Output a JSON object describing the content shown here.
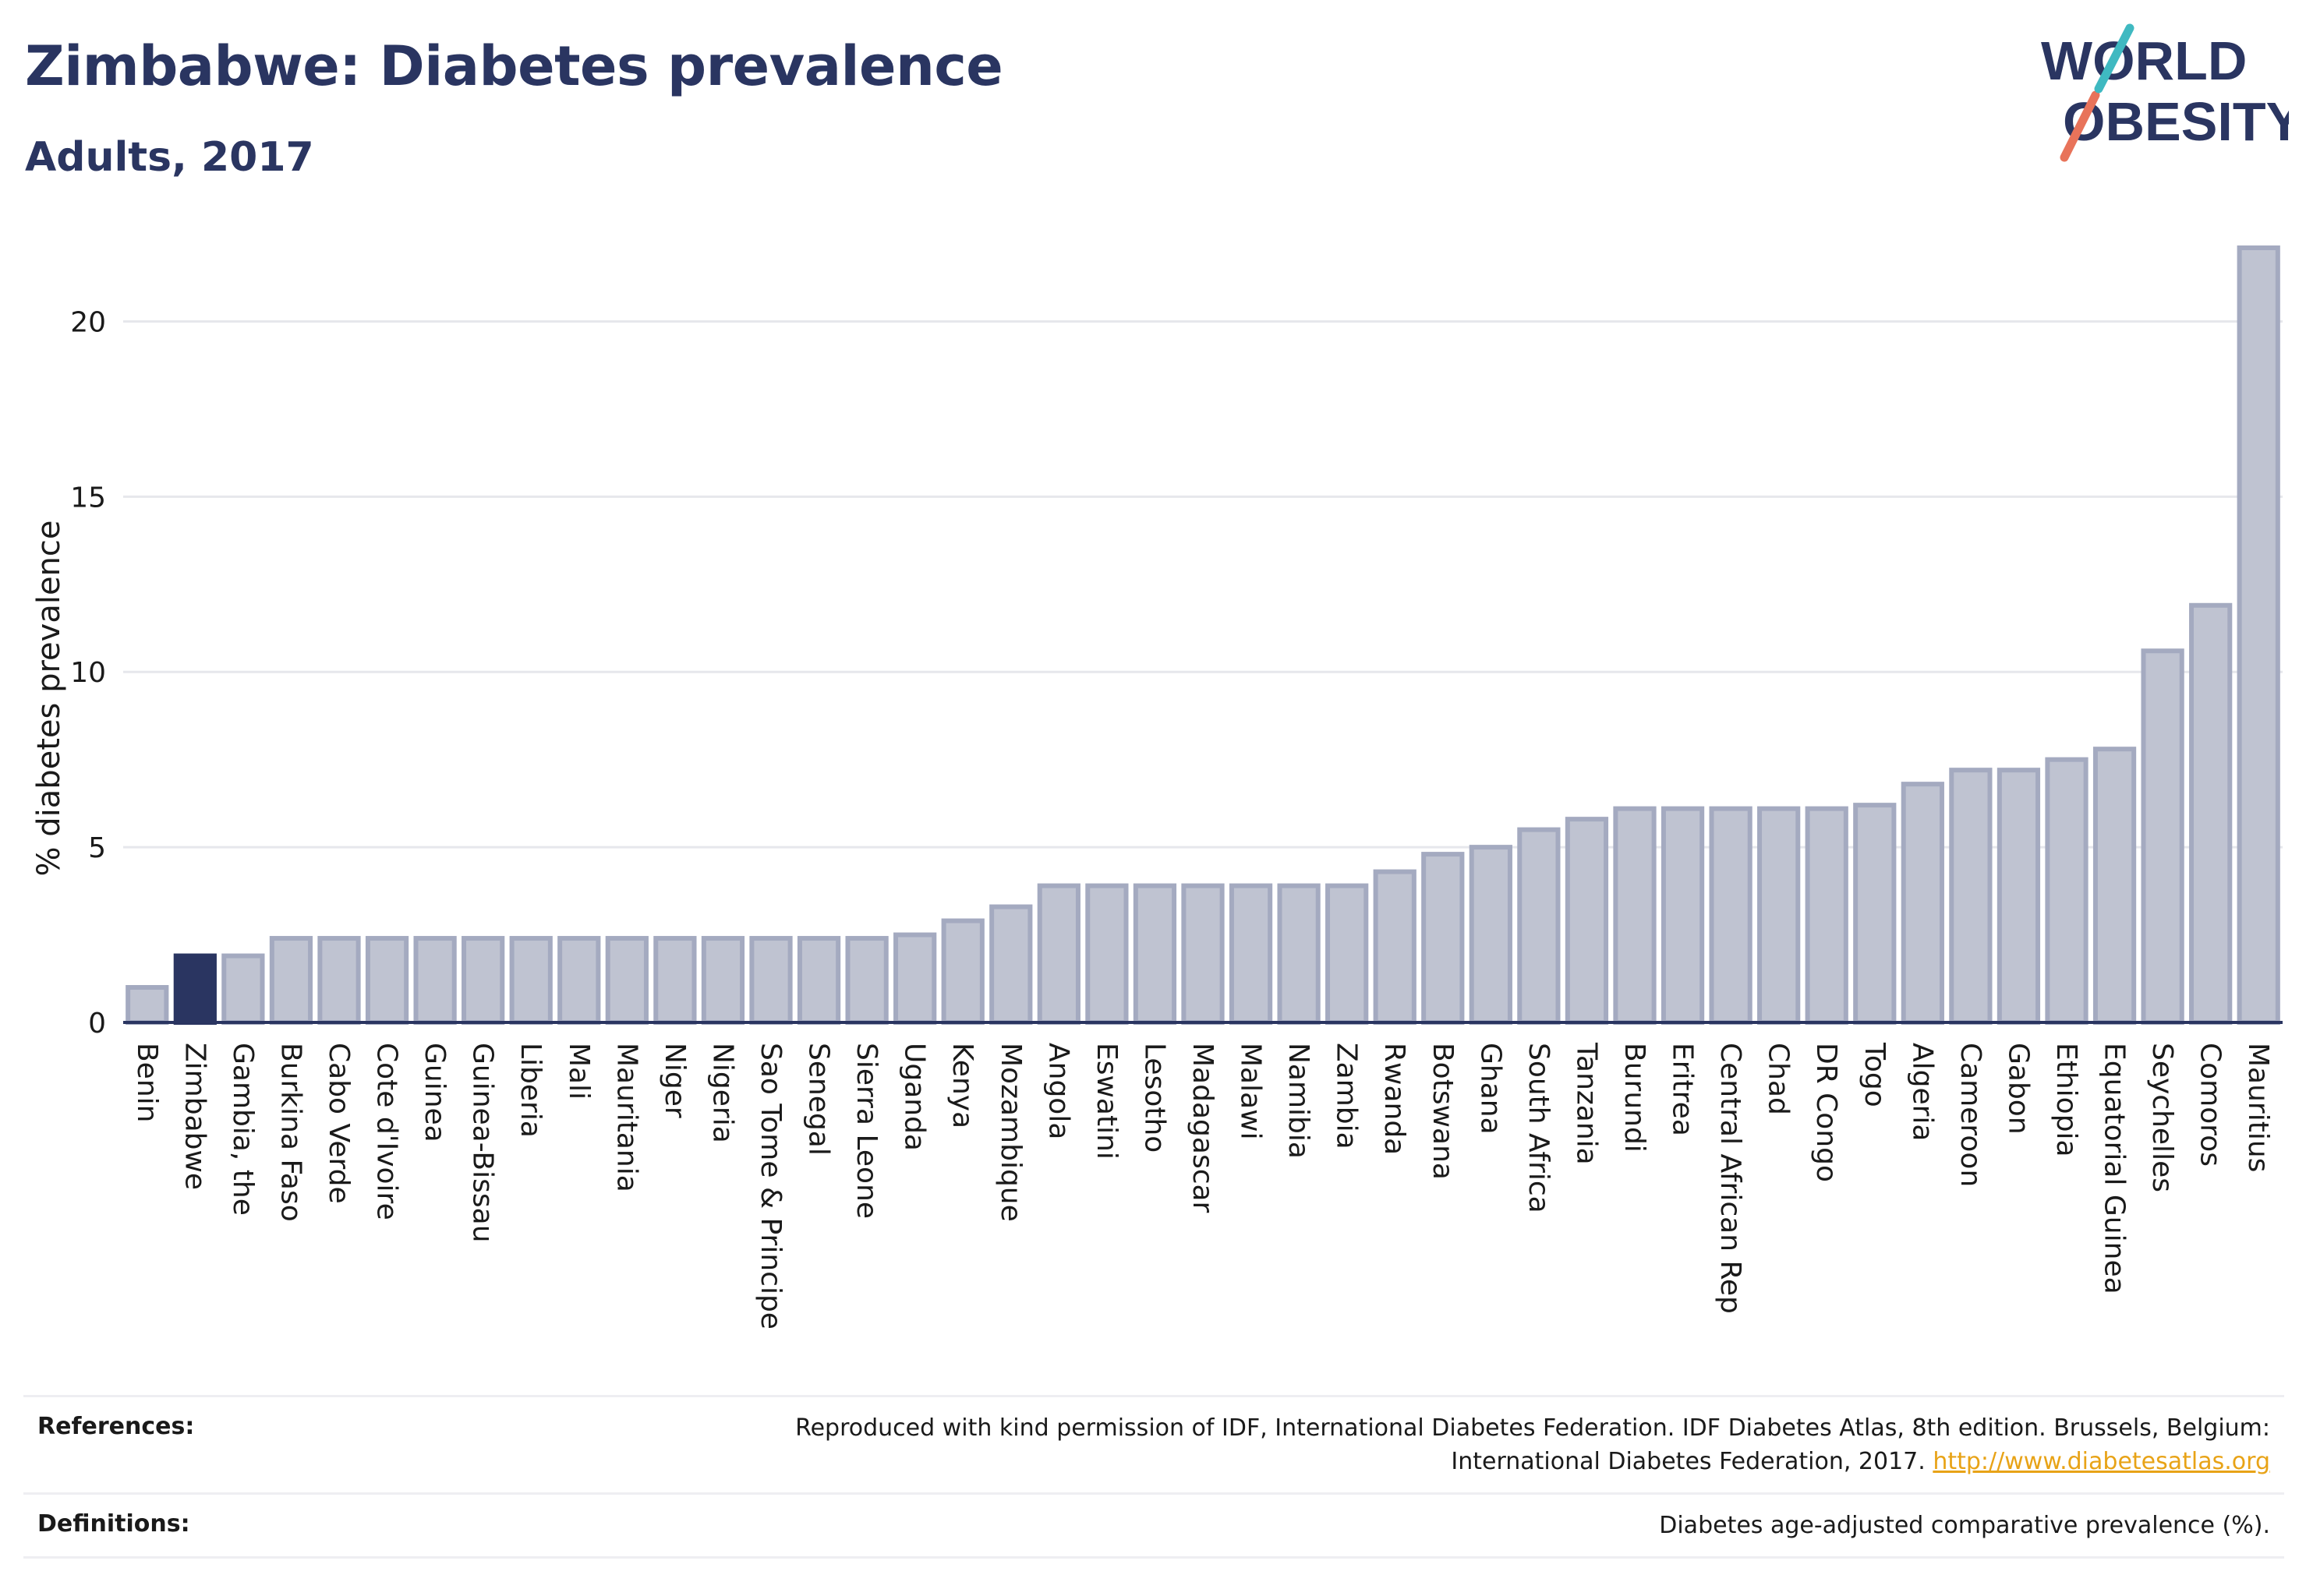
{
  "header": {
    "title": "Zimbabwe: Diabetes prevalence",
    "subtitle": "Adults, 2017"
  },
  "logo": {
    "line1": "WORLD",
    "line2": "OBESITY",
    "slash_colors": [
      "#e8735a",
      "#3fb9c1"
    ],
    "text_color": "#2a3561"
  },
  "colors": {
    "highlight_bar": "#2a3561",
    "bar_fill": "#bfc3d1",
    "bar_stroke": "#a4aac0",
    "link": "#e8a317"
  },
  "chart_data": {
    "type": "bar",
    "ylabel": "% diabetes prevalence",
    "xlabel": "",
    "ylim": [
      0,
      22.5
    ],
    "yticks": [
      0,
      5,
      10,
      15,
      20
    ],
    "grid": true,
    "highlight": "Zimbabwe",
    "categories": [
      "Benin",
      "Zimbabwe",
      "Gambia, the",
      "Burkina Faso",
      "Cabo Verde",
      "Cote d'Ivoire",
      "Guinea",
      "Guinea-Bissau",
      "Liberia",
      "Mali",
      "Mauritania",
      "Niger",
      "Nigeria",
      "Sao Tome & Principe",
      "Senegal",
      "Sierra Leone",
      "Uganda",
      "Kenya",
      "Mozambique",
      "Angola",
      "Eswatini",
      "Lesotho",
      "Madagascar",
      "Malawi",
      "Namibia",
      "Zambia",
      "Rwanda",
      "Botswana",
      "Ghana",
      "South Africa",
      "Tanzania",
      "Burundi",
      "Eritrea",
      "Central African Rep",
      "Chad",
      "DR Congo",
      "Togo",
      "Algeria",
      "Cameroon",
      "Gabon",
      "Ethiopia",
      "Equatorial Guinea",
      "Seychelles",
      "Comoros",
      "Mauritius"
    ],
    "values": [
      1.0,
      1.9,
      1.9,
      2.4,
      2.4,
      2.4,
      2.4,
      2.4,
      2.4,
      2.4,
      2.4,
      2.4,
      2.4,
      2.4,
      2.4,
      2.4,
      2.5,
      2.9,
      3.3,
      3.9,
      3.9,
      3.9,
      3.9,
      3.9,
      3.9,
      3.9,
      4.3,
      4.8,
      5.0,
      5.5,
      5.8,
      6.1,
      6.1,
      6.1,
      6.1,
      6.1,
      6.2,
      6.8,
      7.2,
      7.2,
      7.5,
      7.8,
      10.6,
      11.9,
      22.1
    ]
  },
  "footer": {
    "references_label": "References:",
    "references_text": "Reproduced with kind permission of IDF, International Diabetes Federation. IDF Diabetes Atlas, 8th edition. Brussels, Belgium: International Diabetes Federation, 2017.",
    "references_link": "http://www.diabetesatlas.org",
    "definitions_label": "Definitions:",
    "definitions_text": "Diabetes age-adjusted comparative prevalence (%)."
  }
}
